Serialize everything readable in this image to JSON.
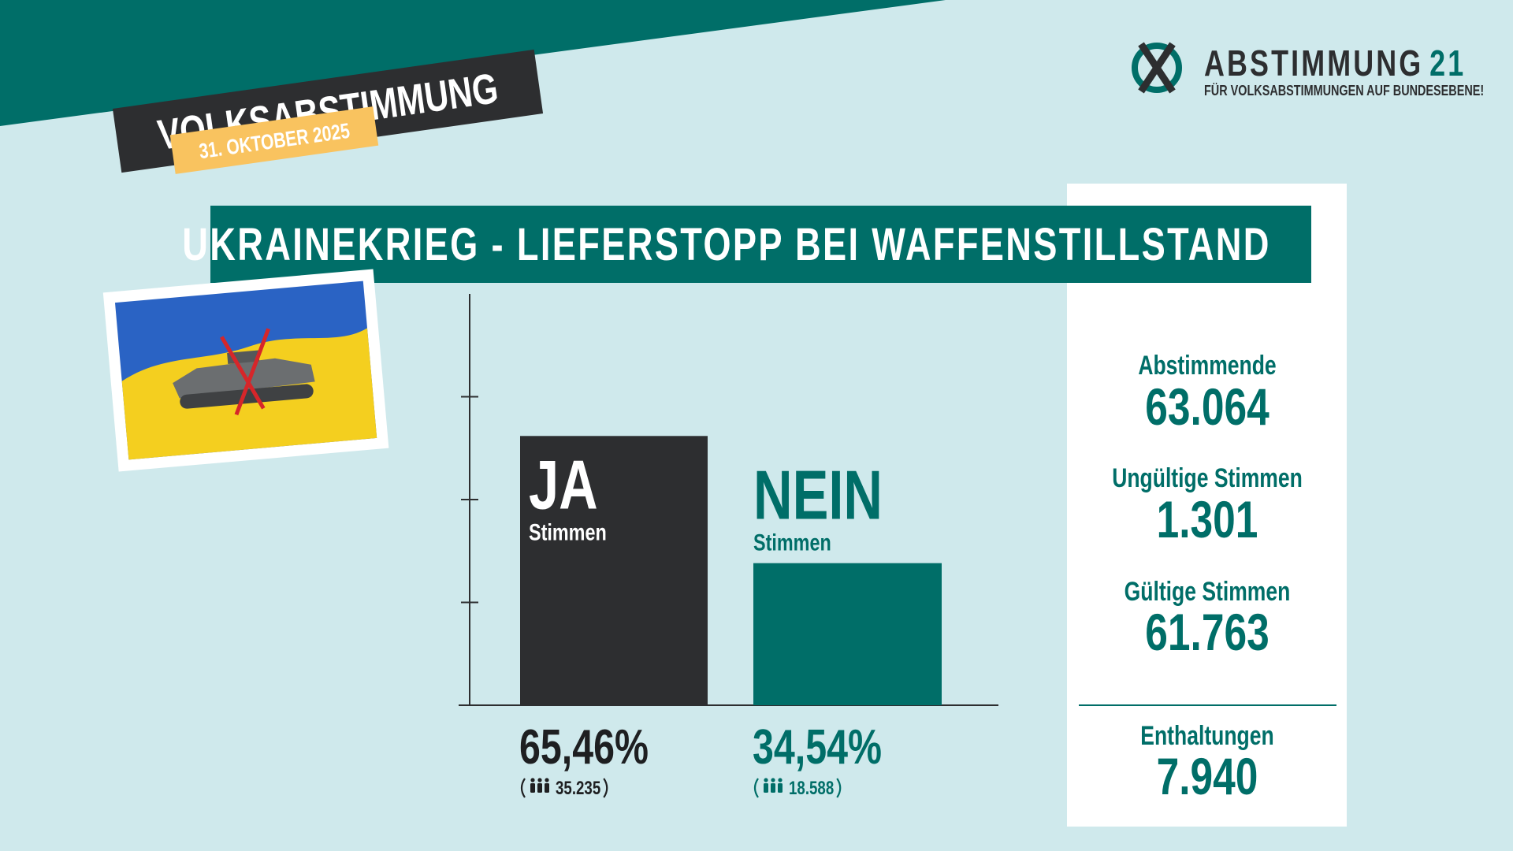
{
  "header": {
    "badge": "VOLKSABSTIMMUNG",
    "date": "31. OKTOBER 2025"
  },
  "logo": {
    "name": "ABSTIMMUNG",
    "number": "21",
    "tagline": "FÜR VOLKSABSTIMMUNGEN AUF BUNDESEBENE!"
  },
  "chart_data": {
    "type": "bar",
    "title": "UKRAINEKRIEG - LIEFERSTOPP BEI WAFFENSTILLSTAND",
    "categories": [
      "JA",
      "NEIN"
    ],
    "category_sublabels": [
      "Stimmen",
      "Stimmen"
    ],
    "values": [
      65.46,
      34.54
    ],
    "value_labels": [
      "65,46%",
      "34,54%"
    ],
    "votes": [
      35235,
      18588
    ],
    "vote_labels": [
      "35.235",
      "18.588"
    ],
    "colors": [
      "#2d2e30",
      "#006e68"
    ],
    "ylim": [
      0,
      100
    ],
    "yticks": [
      25,
      50,
      75
    ]
  },
  "stats": [
    {
      "label": "Abstimmende",
      "value": "63.064"
    },
    {
      "label": "Ungültige Stimmen",
      "value": "1.301"
    },
    {
      "label": "Gültige Stimmen",
      "value": "61.763"
    },
    {
      "label": "Enthaltungen",
      "value": "7.940"
    }
  ]
}
